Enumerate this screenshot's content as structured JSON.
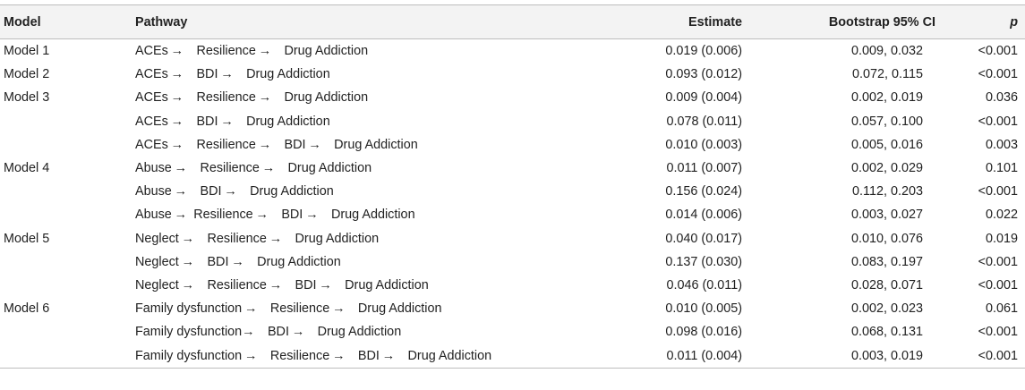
{
  "header": {
    "model": "Model",
    "pathway": "Pathway",
    "estimate": "Estimate",
    "ci": "Bootstrap 95% CI",
    "p": "p"
  },
  "rows": [
    {
      "model": "Model 1",
      "pathway": "ACEs → Resilience → Drug Addiction",
      "estimate": "0.019 (0.006)",
      "ci": "0.009, 0.032",
      "p": "<0.001"
    },
    {
      "model": "Model 2",
      "pathway": "ACEs → BDI → Drug Addiction",
      "estimate": "0.093 (0.012)",
      "ci": "0.072, 0.115",
      "p": "<0.001"
    },
    {
      "model": "Model 3",
      "pathway": "ACEs → Resilience → Drug Addiction",
      "estimate": "0.009 (0.004)",
      "ci": "0.002, 0.019",
      "p": "0.036"
    },
    {
      "model": "",
      "pathway": "ACEs → BDI → Drug Addiction",
      "estimate": "0.078 (0.011)",
      "ci": "0.057, 0.100",
      "p": "<0.001"
    },
    {
      "model": "",
      "pathway": "ACEs → Resilience → BDI → Drug Addiction",
      "estimate": "0.010 (0.003)",
      "ci": "0.005, 0.016",
      "p": "0.003"
    },
    {
      "model": "Model 4",
      "pathway": "Abuse → Resilience → Drug Addiction",
      "estimate": "0.011 (0.007)",
      "ci": "0.002, 0.029",
      "p": "0.101"
    },
    {
      "model": "",
      "pathway": "Abuse → BDI → Drug Addiction",
      "estimate": "0.156 (0.024)",
      "ci": "0.112, 0.203",
      "p": "<0.001"
    },
    {
      "model": "",
      "pathway": "Abuse → Resilience → BDI → Drug Addiction",
      "estimate": "0.014 (0.006)",
      "ci": "0.003, 0.027",
      "p": "0.022"
    },
    {
      "model": "Model 5",
      "pathway": "Neglect → Resilience → Drug Addiction",
      "estimate": "0.040 (0.017)",
      "ci": "0.010, 0.076",
      "p": "0.019"
    },
    {
      "model": "",
      "pathway": "Neglect → BDI → Drug Addiction",
      "estimate": "0.137 (0.030)",
      "ci": "0.083, 0.197",
      "p": "<0.001"
    },
    {
      "model": "",
      "pathway": "Neglect → Resilience → BDI → Drug Addiction",
      "estimate": "0.046 (0.011)",
      "ci": "0.028, 0.071",
      "p": "<0.001"
    },
    {
      "model": "Model 6",
      "pathway": "Family dysfunction → Resilience → Drug Addiction",
      "estimate": "0.010 (0.005)",
      "ci": "0.002, 0.023",
      "p": "0.061"
    },
    {
      "model": "",
      "pathway": "Family dysfunction→ BDI → Drug Addiction",
      "estimate": "0.098 (0.016)",
      "ci": "0.068, 0.131",
      "p": "<0.001"
    },
    {
      "model": "",
      "pathway": "Family dysfunction → Resilience → BDI → Drug Addiction",
      "estimate": "0.011 (0.004)",
      "ci": "0.003, 0.019",
      "p": "<0.001"
    }
  ]
}
